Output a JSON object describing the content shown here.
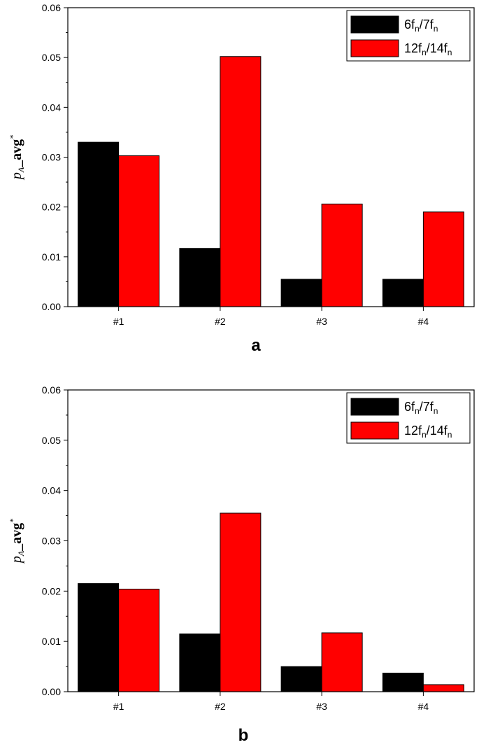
{
  "chart_data": [
    {
      "type": "bar",
      "panel": "a",
      "categories": [
        "#1",
        "#2",
        "#3",
        "#4"
      ],
      "series": [
        {
          "name": "6fn/7fn",
          "legend_main": "6f",
          "legend_sub1": "n",
          "legend_mid": "/7f",
          "legend_sub2": "n",
          "color": "#000000",
          "values": [
            0.033,
            0.0117,
            0.0055,
            0.0055
          ]
        },
        {
          "name": "12fn/14fn",
          "legend_main": "12f",
          "legend_sub1": "n",
          "legend_mid": "/14f",
          "legend_sub2": "n",
          "color": "#ff0000",
          "values": [
            0.0303,
            0.0502,
            0.0206,
            0.019
          ]
        }
      ],
      "ylabel_main": "p",
      "ylabel_sub": "A",
      "ylabel_text": "_avg",
      "ylabel_sup": "*",
      "ylim": [
        0,
        0.06
      ],
      "yticks": [
        "0.00",
        "0.01",
        "0.02",
        "0.03",
        "0.04",
        "0.05",
        "0.06"
      ],
      "legend_position": "top-right",
      "grid": false
    },
    {
      "type": "bar",
      "panel": "b",
      "categories": [
        "#1",
        "#2",
        "#3",
        "#4"
      ],
      "series": [
        {
          "name": "6fn/7fn",
          "legend_main": "6f",
          "legend_sub1": "n",
          "legend_mid": "/7f",
          "legend_sub2": "n",
          "color": "#000000",
          "values": [
            0.0215,
            0.0115,
            0.005,
            0.0037
          ]
        },
        {
          "name": "12fn/14fn",
          "legend_main": "12f",
          "legend_sub1": "n",
          "legend_mid": "/14f",
          "legend_sub2": "n",
          "color": "#ff0000",
          "values": [
            0.0204,
            0.0355,
            0.0117,
            0.0014
          ]
        }
      ],
      "ylabel_main": "p",
      "ylabel_sub": "A",
      "ylabel_text": "_avg",
      "ylabel_sup": "*",
      "ylim": [
        0,
        0.06
      ],
      "yticks": [
        "0.00",
        "0.01",
        "0.02",
        "0.03",
        "0.04",
        "0.05",
        "0.06"
      ],
      "legend_position": "top-right",
      "grid": false
    }
  ]
}
